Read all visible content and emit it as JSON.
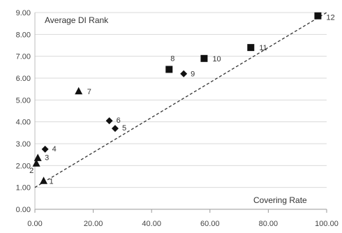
{
  "chart_data": {
    "type": "scatter",
    "title": "",
    "xlabel": "Covering Rate",
    "ylabel": "Average DI Rank",
    "xlim": [
      0,
      100
    ],
    "ylim": [
      0,
      9
    ],
    "x_ticks": [
      "0.00",
      "20.00",
      "40.00",
      "60.00",
      "80.00",
      "100.00"
    ],
    "y_ticks": [
      "0.00",
      "1.00",
      "2.00",
      "3.00",
      "4.00",
      "5.00",
      "6.00",
      "7.00",
      "8.00",
      "9.00"
    ],
    "grid": "horizontal",
    "points": [
      {
        "label": "1",
        "x": 3,
        "y": 1.3,
        "marker": "triangle"
      },
      {
        "label": "2",
        "x": 0.5,
        "y": 2.1,
        "marker": "triangle"
      },
      {
        "label": "3",
        "x": 1,
        "y": 2.35,
        "marker": "triangle"
      },
      {
        "label": "4",
        "x": 3.5,
        "y": 2.75,
        "marker": "diamond"
      },
      {
        "label": "5",
        "x": 27.5,
        "y": 3.7,
        "marker": "diamond"
      },
      {
        "label": "6",
        "x": 25.5,
        "y": 4.05,
        "marker": "diamond"
      },
      {
        "label": "7",
        "x": 15,
        "y": 5.4,
        "marker": "triangle"
      },
      {
        "label": "8",
        "x": 46,
        "y": 6.4,
        "marker": "square"
      },
      {
        "label": "9",
        "x": 51,
        "y": 6.2,
        "marker": "diamond"
      },
      {
        "label": "10",
        "x": 58,
        "y": 6.9,
        "marker": "square"
      },
      {
        "label": "11",
        "x": 74,
        "y": 7.4,
        "marker": "square"
      },
      {
        "label": "12",
        "x": 97,
        "y": 8.85,
        "marker": "square"
      }
    ],
    "trendline": {
      "style": "dashed",
      "from": [
        0,
        1.0
      ],
      "to": [
        100,
        9.0
      ]
    }
  }
}
